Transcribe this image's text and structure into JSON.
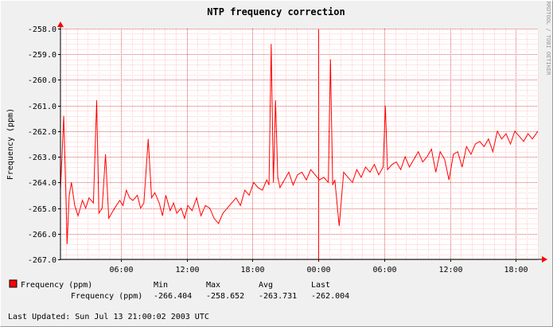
{
  "chart_data": {
    "type": "line",
    "title": "NTP frequency correction",
    "ylabel": "Frequency (ppm)",
    "xlabel": "",
    "watermark": "RRDTOOL / TOBI OETIKER",
    "ylim": [
      -267.0,
      -258.0
    ],
    "y_ticks": [
      -258.0,
      -259.0,
      -260.0,
      -261.0,
      -262.0,
      -263.0,
      -264.0,
      -265.0,
      -266.0,
      -267.0
    ],
    "y_tick_labels": [
      "-258.0",
      "-259.0",
      "-260.0",
      "-261.0",
      "-262.0",
      "-263.0",
      "-264.0",
      "-265.0",
      "-266.0",
      "-267.0"
    ],
    "x_range_hours": [
      0,
      43.5
    ],
    "x_ticks": [
      {
        "label": "06:00",
        "hour": 5.5
      },
      {
        "label": "12:00",
        "hour": 11.5
      },
      {
        "label": "18:00",
        "hour": 17.5
      },
      {
        "label": "00:00",
        "hour": 23.5
      },
      {
        "label": "06:00",
        "hour": 29.5
      },
      {
        "label": "12:00",
        "hour": 35.5
      },
      {
        "label": "18:00",
        "hour": 41.5
      }
    ],
    "midnight_hour": 23.5,
    "grid": true,
    "series": [
      {
        "name": "Frequency (ppm)",
        "color": "#ff0000",
        "x": [
          0.0,
          0.3,
          0.5,
          0.6,
          0.8,
          1.0,
          1.3,
          1.6,
          2.0,
          2.3,
          2.6,
          3.0,
          3.3,
          3.5,
          3.8,
          4.1,
          4.4,
          4.8,
          5.1,
          5.4,
          5.7,
          6.0,
          6.3,
          6.6,
          7.0,
          7.3,
          7.6,
          8.0,
          8.3,
          8.6,
          9.0,
          9.3,
          9.6,
          10.0,
          10.3,
          10.6,
          11.0,
          11.3,
          11.6,
          12.0,
          12.4,
          12.8,
          13.2,
          13.6,
          14.0,
          14.4,
          14.8,
          15.2,
          15.6,
          16.0,
          16.4,
          16.8,
          17.2,
          17.6,
          18.0,
          18.4,
          18.8,
          19.0,
          19.2,
          19.4,
          19.6,
          19.8,
          20.0,
          20.4,
          20.8,
          21.2,
          21.6,
          22.0,
          22.4,
          22.8,
          23.2,
          23.6,
          24.0,
          24.4,
          24.6,
          24.8,
          25.0,
          25.4,
          25.8,
          26.2,
          26.6,
          27.0,
          27.4,
          27.8,
          28.2,
          28.6,
          29.0,
          29.4,
          29.6,
          29.8,
          30.2,
          30.6,
          31.0,
          31.4,
          31.8,
          32.2,
          32.6,
          33.0,
          33.4,
          33.8,
          34.2,
          34.6,
          35.0,
          35.4,
          35.8,
          36.2,
          36.6,
          37.0,
          37.4,
          37.8,
          38.2,
          38.6,
          39.0,
          39.4,
          39.8,
          40.2,
          40.6,
          41.0,
          41.4,
          41.8,
          42.2,
          42.6,
          43.0,
          43.5
        ],
        "values": [
          -264.3,
          -261.4,
          -264.6,
          -266.4,
          -264.5,
          -264.0,
          -264.9,
          -265.3,
          -264.7,
          -265.0,
          -264.6,
          -264.8,
          -260.8,
          -265.2,
          -265.0,
          -262.9,
          -265.4,
          -265.1,
          -264.9,
          -264.7,
          -264.9,
          -264.3,
          -264.6,
          -264.7,
          -264.5,
          -265.0,
          -264.8,
          -262.3,
          -264.6,
          -264.4,
          -264.8,
          -265.3,
          -264.5,
          -265.1,
          -264.8,
          -265.2,
          -265.0,
          -265.4,
          -264.9,
          -265.1,
          -264.6,
          -265.3,
          -264.9,
          -265.0,
          -265.4,
          -265.6,
          -265.2,
          -265.0,
          -264.8,
          -264.6,
          -264.9,
          -264.3,
          -264.5,
          -264.0,
          -264.2,
          -264.3,
          -263.9,
          -264.1,
          -258.6,
          -264.0,
          -260.8,
          -263.8,
          -264.2,
          -263.9,
          -263.6,
          -264.1,
          -263.7,
          -263.6,
          -263.9,
          -263.5,
          -263.7,
          -263.9,
          -263.8,
          -264.0,
          -259.2,
          -264.1,
          -263.9,
          -265.7,
          -263.6,
          -263.8,
          -264.0,
          -263.5,
          -263.8,
          -263.4,
          -263.6,
          -263.3,
          -263.7,
          -263.4,
          -261.0,
          -263.5,
          -263.3,
          -263.2,
          -263.5,
          -263.0,
          -263.4,
          -263.1,
          -262.8,
          -263.2,
          -263.0,
          -262.7,
          -263.6,
          -262.8,
          -263.1,
          -263.9,
          -262.9,
          -262.8,
          -263.4,
          -262.6,
          -262.9,
          -262.5,
          -262.4,
          -262.6,
          -262.3,
          -262.8,
          -262.0,
          -262.3,
          -262.1,
          -262.5,
          -262.0,
          -262.2,
          -262.4,
          -262.1,
          -262.3,
          -262.0
        ]
      }
    ],
    "legend": {
      "placement": "bottom-left",
      "entry": "Frequency (ppm)",
      "color": "#ff0000"
    },
    "stats": {
      "row_label": "Frequency (ppm)",
      "headers": [
        "Min",
        "Max",
        "Avg",
        "Last"
      ],
      "values": [
        "-266.404",
        "-258.652",
        "-263.731",
        "-262.004"
      ]
    },
    "last_updated": "Last Updated: Sun Jul 13 21:00:02 2003 UTC"
  }
}
